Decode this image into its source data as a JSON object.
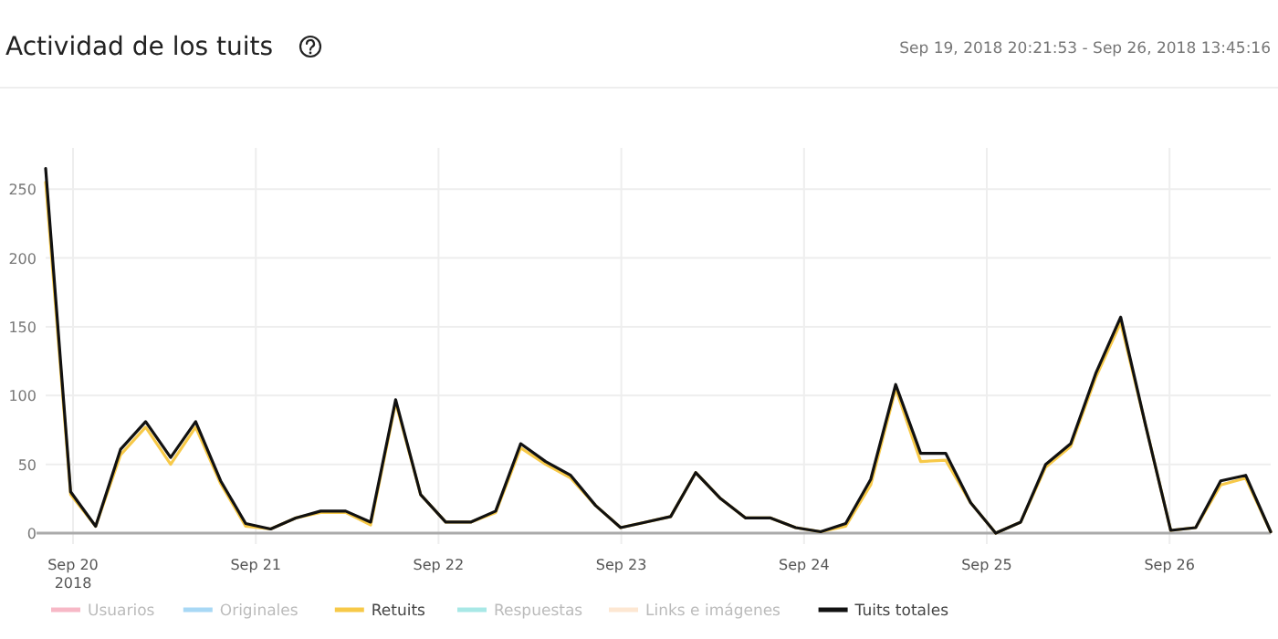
{
  "chart_data": {
    "type": "line",
    "title": "Actividad de los tuits",
    "subtitle": "Sep 19, 2018 20:21:53 - Sep 26, 2018 13:45:16",
    "x": [
      "2018-09-19T20:24",
      "2018-09-19T23:41",
      "2018-09-20T02:58",
      "2018-09-20T06:15",
      "2018-09-20T09:32",
      "2018-09-20T12:49",
      "2018-09-20T16:06",
      "2018-09-20T19:23",
      "2018-09-20T22:40",
      "2018-09-21T01:57",
      "2018-09-21T05:14",
      "2018-09-21T08:31",
      "2018-09-21T11:48",
      "2018-09-21T15:05",
      "2018-09-21T18:22",
      "2018-09-21T21:39",
      "2018-09-22T00:56",
      "2018-09-22T04:13",
      "2018-09-22T07:30",
      "2018-09-22T10:47",
      "2018-09-22T14:04",
      "2018-09-22T17:21",
      "2018-09-22T20:38",
      "2018-09-22T23:55",
      "2018-09-23T03:12",
      "2018-09-23T06:29",
      "2018-09-23T09:46",
      "2018-09-23T13:03",
      "2018-09-23T16:20",
      "2018-09-23T19:37",
      "2018-09-23T22:54",
      "2018-09-24T02:11",
      "2018-09-24T05:28",
      "2018-09-24T08:45",
      "2018-09-24T12:02",
      "2018-09-24T15:19",
      "2018-09-24T18:36",
      "2018-09-24T21:53",
      "2018-09-25T01:10",
      "2018-09-25T04:27",
      "2018-09-25T07:44",
      "2018-09-25T11:01",
      "2018-09-25T14:18",
      "2018-09-25T17:35",
      "2018-09-25T20:52",
      "2018-09-26T00:09",
      "2018-09-26T03:26",
      "2018-09-26T06:43",
      "2018-09-26T10:00",
      "2018-09-26T13:17"
    ],
    "series": [
      {
        "name": "Usuarios",
        "color": "#f7b8c6",
        "values": [
          null,
          null,
          null,
          null,
          null,
          null,
          null,
          null,
          null,
          null,
          null,
          null,
          null,
          null,
          null,
          null,
          null,
          null,
          null,
          null,
          null,
          null,
          null,
          null,
          null,
          null,
          null,
          null,
          null,
          null,
          null,
          null,
          null,
          null,
          null,
          null,
          null,
          null,
          null,
          null,
          null,
          null,
          null,
          null,
          null,
          null,
          null,
          null,
          null,
          null
        ]
      },
      {
        "name": "Originales",
        "color": "#a8d8f5",
        "values": [
          null,
          null,
          null,
          null,
          null,
          null,
          null,
          null,
          null,
          null,
          null,
          null,
          null,
          null,
          null,
          null,
          null,
          null,
          null,
          null,
          null,
          null,
          null,
          null,
          null,
          null,
          null,
          null,
          null,
          null,
          null,
          null,
          null,
          null,
          null,
          null,
          null,
          null,
          null,
          null,
          null,
          null,
          null,
          null,
          null,
          null,
          null,
          null,
          null,
          null
        ]
      },
      {
        "name": "Retuits",
        "color": "#f7c948",
        "values": [
          255,
          28,
          5,
          57,
          77,
          50,
          77,
          36,
          5,
          3,
          11,
          15,
          15,
          6,
          95,
          28,
          8,
          8,
          15,
          62,
          50,
          40,
          20,
          4,
          8,
          12,
          44,
          25,
          11,
          11,
          4,
          1,
          5,
          35,
          105,
          52,
          53,
          22,
          0,
          8,
          48,
          63,
          113,
          153,
          78,
          2,
          4,
          35,
          40,
          1
        ]
      },
      {
        "name": "Respuestas",
        "color": "#a8e8e6",
        "values": [
          null,
          null,
          null,
          null,
          null,
          null,
          null,
          null,
          null,
          null,
          null,
          null,
          null,
          null,
          null,
          null,
          null,
          null,
          null,
          null,
          null,
          null,
          null,
          null,
          null,
          null,
          null,
          null,
          null,
          null,
          null,
          null,
          null,
          null,
          null,
          null,
          null,
          null,
          null,
          null,
          null,
          null,
          null,
          null,
          null,
          null,
          null,
          null,
          null,
          null
        ]
      },
      {
        "name": "Links e imágenes",
        "color": "#fde7d2",
        "values": [
          null,
          null,
          null,
          null,
          null,
          null,
          null,
          null,
          null,
          null,
          null,
          null,
          null,
          null,
          null,
          null,
          null,
          null,
          null,
          null,
          null,
          null,
          null,
          null,
          null,
          null,
          null,
          null,
          null,
          null,
          null,
          null,
          null,
          null,
          null,
          null,
          null,
          null,
          null,
          null,
          null,
          null,
          null,
          null,
          null,
          null,
          null,
          null,
          null,
          null
        ]
      },
      {
        "name": "Tuits totales",
        "color": "#111111",
        "values": [
          265,
          30,
          5,
          61,
          81,
          55,
          81,
          38,
          7,
          3,
          11,
          16,
          16,
          8,
          97,
          28,
          8,
          8,
          16,
          65,
          52,
          42,
          20,
          4,
          8,
          12,
          44,
          25,
          11,
          11,
          4,
          1,
          7,
          39,
          108,
          58,
          58,
          22,
          0,
          8,
          50,
          65,
          116,
          157,
          78,
          2,
          4,
          38,
          42,
          1
        ]
      }
    ],
    "xlim": [
      "2018-09-19T20:24",
      "2018-09-26T13:17"
    ],
    "xticks": [
      {
        "value": "2018-09-20",
        "label": "Sep 20\n2018"
      },
      {
        "value": "2018-09-21",
        "label": "Sep 21"
      },
      {
        "value": "2018-09-22",
        "label": "Sep 22"
      },
      {
        "value": "2018-09-23",
        "label": "Sep 23"
      },
      {
        "value": "2018-09-24",
        "label": "Sep 24"
      },
      {
        "value": "2018-09-25",
        "label": "Sep 25"
      },
      {
        "value": "2018-09-26",
        "label": "Sep 26"
      }
    ],
    "ylim": [
      0,
      280
    ],
    "yticks": [
      0,
      50,
      100,
      150,
      200,
      250
    ],
    "grid": true,
    "legend": "bottom",
    "marker": "none",
    "line_style": "solid"
  }
}
